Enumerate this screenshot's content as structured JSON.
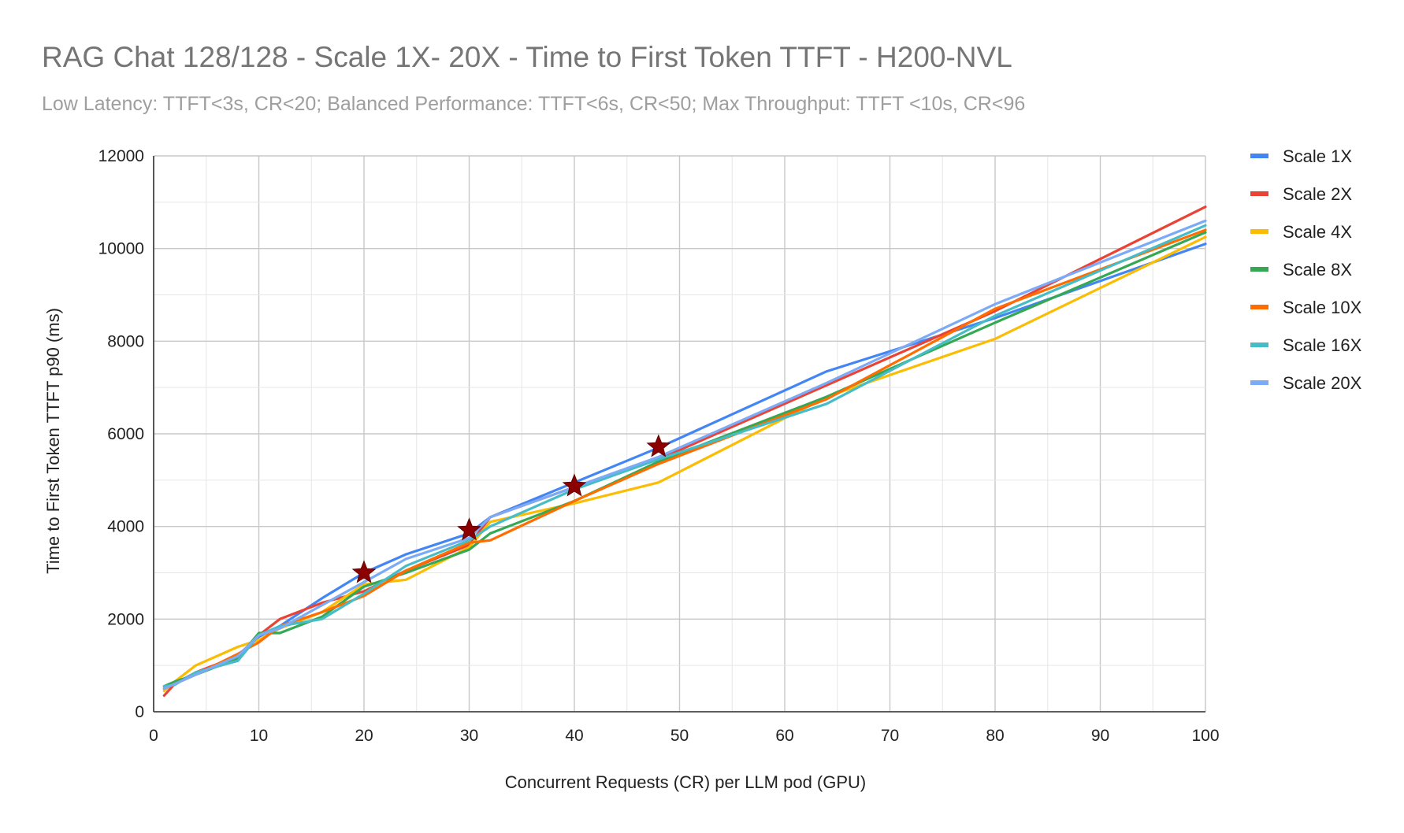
{
  "chart_data": {
    "type": "line",
    "title": "RAG Chat 128/128 - Scale 1X- 20X - Time to First Token TTFT - H200-NVL",
    "subtitle": "Low Latency: TTFT<3s, CR<20; Balanced Performance: TTFT<6s, CR<50; Max Throughput: TTFT <10s, CR<96",
    "xlabel": "Concurrent Requests (CR) per LLM pod (GPU)",
    "ylabel": "Time to First Token TTFT p90 (ms)",
    "xlim": [
      0,
      100
    ],
    "ylim": [
      0,
      12000
    ],
    "x_ticks": [
      0,
      10,
      20,
      30,
      40,
      50,
      60,
      70,
      80,
      90,
      100
    ],
    "y_ticks": [
      0,
      2000,
      4000,
      6000,
      8000,
      10000,
      12000
    ],
    "grid": true,
    "legend_position": "right",
    "x": [
      1,
      2,
      4,
      8,
      10,
      12,
      16,
      20,
      24,
      30,
      32,
      40,
      48,
      64,
      80,
      100
    ],
    "series": [
      {
        "name": "Scale 1X",
        "color": "#4285F4",
        "values": [
          500,
          620,
          820,
          1220,
          1620,
          1850,
          2450,
          3000,
          3400,
          3850,
          4200,
          4950,
          5700,
          7350,
          8500,
          10100
        ]
      },
      {
        "name": "Scale 2X",
        "color": "#EA4335",
        "values": [
          350,
          600,
          850,
          1200,
          1650,
          2000,
          2350,
          2600,
          3050,
          3600,
          4200,
          4850,
          5450,
          7050,
          8650,
          10900
        ]
      },
      {
        "name": "Scale 4X",
        "color": "#FBBC04",
        "values": [
          450,
          650,
          1000,
          1400,
          1550,
          1800,
          2150,
          2750,
          2850,
          3550,
          4100,
          4500,
          4950,
          6800,
          8050,
          10250
        ]
      },
      {
        "name": "Scale 8X",
        "color": "#34A853",
        "values": [
          550,
          650,
          800,
          1150,
          1700,
          1700,
          2050,
          2700,
          3000,
          3500,
          3850,
          4550,
          5400,
          6800,
          8400,
          10350
        ]
      },
      {
        "name": "Scale 10X",
        "color": "#FF6D01",
        "values": [
          500,
          600,
          800,
          1250,
          1500,
          1850,
          2150,
          2500,
          3050,
          3650,
          3700,
          4550,
          5350,
          6750,
          8700,
          10400
        ]
      },
      {
        "name": "Scale 16X",
        "color": "#46BDC6",
        "values": [
          550,
          580,
          850,
          1100,
          1650,
          1850,
          2000,
          2550,
          3150,
          3700,
          4000,
          4800,
          5450,
          6650,
          8550,
          10500
        ]
      },
      {
        "name": "Scale 20X",
        "color": "#7BAAF7",
        "values": [
          500,
          600,
          800,
          1200,
          1650,
          1800,
          2300,
          2800,
          3300,
          3750,
          4200,
          4850,
          5500,
          7100,
          8800,
          10600
        ]
      }
    ],
    "markers": [
      {
        "x": 20,
        "y": 3000
      },
      {
        "x": 30,
        "y": 3920
      },
      {
        "x": 40,
        "y": 4870
      },
      {
        "x": 48,
        "y": 5720
      }
    ],
    "marker_color": "#8B0000"
  }
}
